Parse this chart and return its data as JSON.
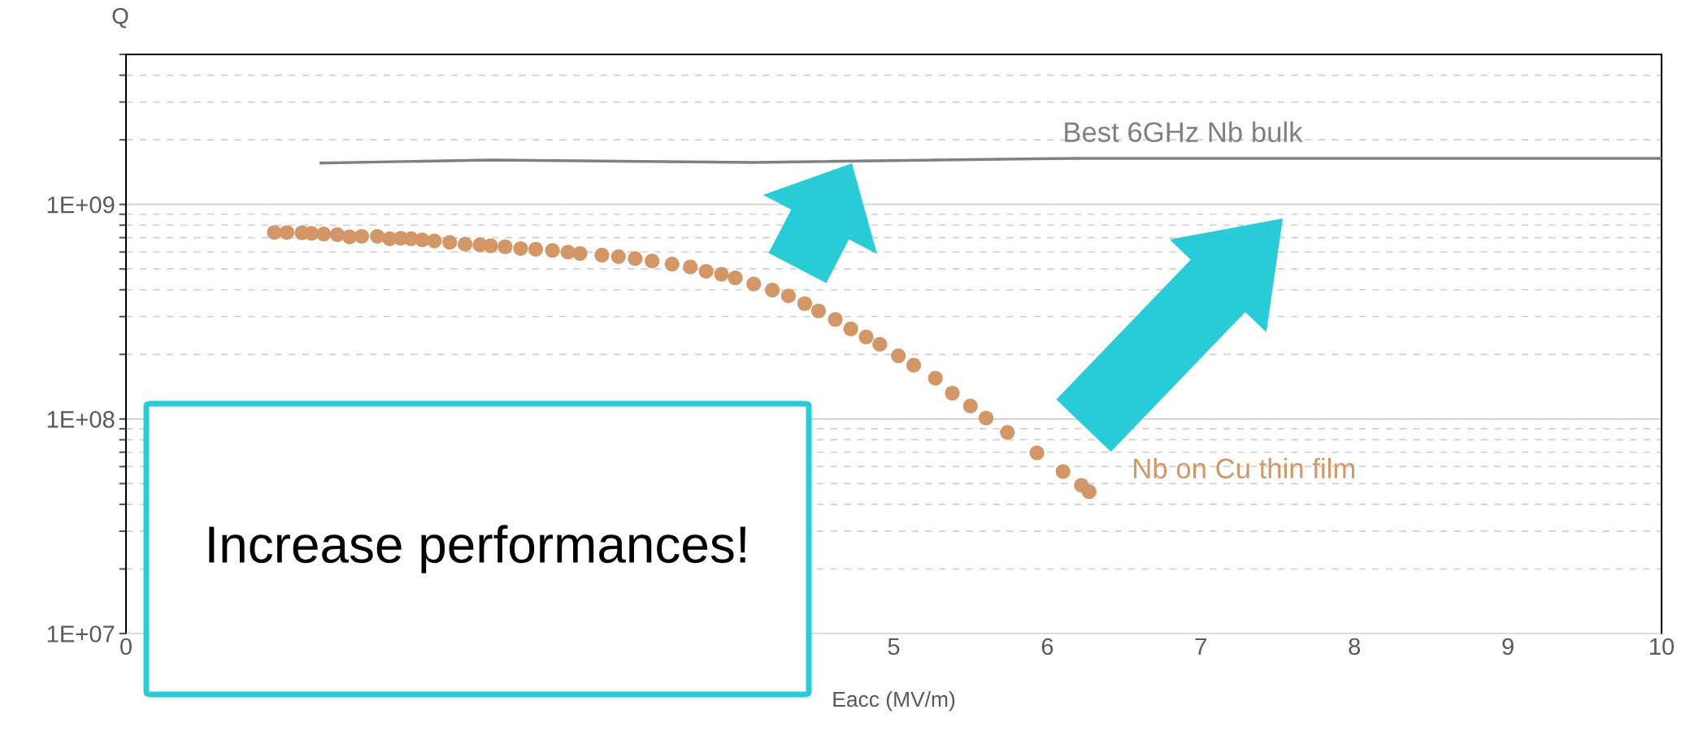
{
  "chart_data": {
    "type": "scatter",
    "xlabel": "Eacc (MV/m)",
    "ylabel": "Q",
    "log": "y",
    "grid": "y",
    "legend": false,
    "xlim": [
      0,
      10
    ],
    "ylim": [
      10000000,
      5000000000
    ],
    "xticks": [
      0,
      5,
      6,
      7,
      8,
      9,
      10
    ],
    "yticks": [
      {
        "value": 10000000,
        "label": "1E+07"
      },
      {
        "value": 20000000,
        "label": null
      },
      {
        "value": 30000000,
        "label": null
      },
      {
        "value": 40000000,
        "label": null
      },
      {
        "value": 50000000,
        "label": null
      },
      {
        "value": 60000000,
        "label": null
      },
      {
        "value": 70000000,
        "label": null
      },
      {
        "value": 80000000,
        "label": null
      },
      {
        "value": 90000000,
        "label": null
      },
      {
        "value": 100000000,
        "label": "1E+08"
      },
      {
        "value": 200000000,
        "label": null
      },
      {
        "value": 300000000,
        "label": null
      },
      {
        "value": 400000000,
        "label": null
      },
      {
        "value": 500000000,
        "label": null
      },
      {
        "value": 600000000,
        "label": null
      },
      {
        "value": 700000000,
        "label": null
      },
      {
        "value": 800000000,
        "label": null
      },
      {
        "value": 900000000,
        "label": null
      },
      {
        "value": 1000000000,
        "label": "1E+09"
      },
      {
        "value": 2000000000,
        "label": null
      },
      {
        "value": 3000000000,
        "label": null
      },
      {
        "value": 4000000000,
        "label": null
      },
      {
        "value": 5000000000,
        "label": null
      }
    ],
    "series": [
      {
        "name": "Best 6GHz Nb bulk",
        "type": "line",
        "color": "#808080",
        "marker": "none",
        "line_style": "solid",
        "x": [
          1.27,
          2.37,
          4.09,
          6.2,
          10
        ],
        "values": [
          1560000000,
          1610000000,
          1570000000,
          1640000000,
          1640000000
        ]
      },
      {
        "name": "Nb on Cu thin film",
        "color": "#d29667",
        "marker": "circle",
        "x": [
          0.966,
          1.048,
          1.146,
          1.208,
          1.287,
          1.376,
          1.456,
          1.535,
          1.637,
          1.717,
          1.789,
          1.857,
          1.929,
          2.008,
          2.108,
          2.208,
          2.305,
          2.375,
          2.469,
          2.57,
          2.668,
          2.777,
          2.878,
          2.957,
          3.099,
          3.207,
          3.316,
          3.426,
          3.556,
          3.675,
          3.778,
          3.878,
          3.968,
          4.088,
          4.209,
          4.314,
          4.42,
          4.51,
          4.619,
          4.72,
          4.82,
          4.909,
          5.03,
          5.13,
          5.271,
          5.381,
          5.499,
          5.601,
          5.74,
          5.932,
          6.102,
          6.222,
          6.272
        ],
        "values": [
          740000000,
          740000000,
          738000000,
          733000000,
          728000000,
          723000000,
          706000000,
          710000000,
          710000000,
          692000000,
          696000000,
          692000000,
          684000000,
          676000000,
          665000000,
          653000000,
          648000000,
          641000000,
          635000000,
          623000000,
          618000000,
          610000000,
          599000000,
          591000000,
          580000000,
          571000000,
          559000000,
          545000000,
          527000000,
          511000000,
          488000000,
          473000000,
          455000000,
          426000000,
          399000000,
          375000000,
          345000000,
          319000000,
          291000000,
          263000000,
          241000000,
          223000000,
          197000000,
          178000000,
          155000000,
          132000000,
          115000000,
          101000000,
          86600000,
          69500000,
          56900000,
          49100000,
          45800000
        ]
      }
    ],
    "annotations": [
      "Increase performances!"
    ]
  }
}
